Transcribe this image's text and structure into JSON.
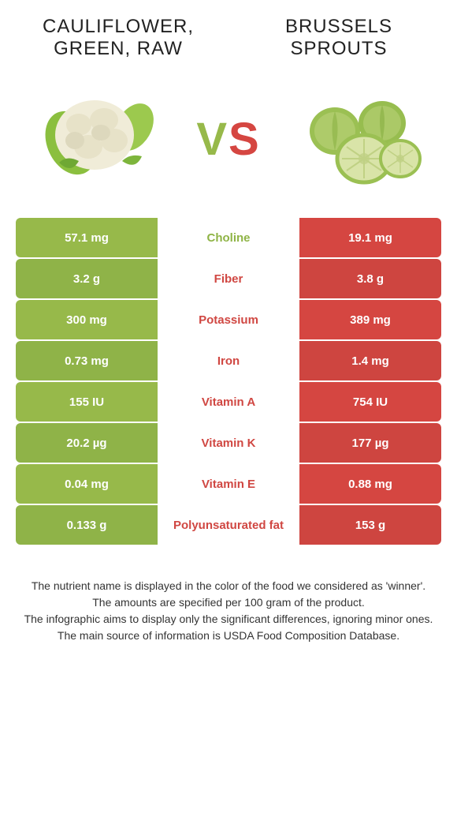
{
  "colors": {
    "left_a": "#97b94a",
    "left_b": "#8fb348",
    "right_a": "#d54641",
    "right_b": "#ce4540",
    "winner_left": "#8fb446",
    "winner_right": "#d04742",
    "vs_v": "#97b94a",
    "vs_s": "#d54641"
  },
  "titles": {
    "left": "Cauliflower, green, raw",
    "right": "Brussels sprouts"
  },
  "vs": {
    "v": "V",
    "s": "S"
  },
  "rows": [
    {
      "left": "57.1 mg",
      "name": "Choline",
      "right": "19.1 mg",
      "winner": "left"
    },
    {
      "left": "3.2 g",
      "name": "Fiber",
      "right": "3.8 g",
      "winner": "right"
    },
    {
      "left": "300 mg",
      "name": "Potassium",
      "right": "389 mg",
      "winner": "right"
    },
    {
      "left": "0.73 mg",
      "name": "Iron",
      "right": "1.4 mg",
      "winner": "right"
    },
    {
      "left": "155 IU",
      "name": "Vitamin A",
      "right": "754 IU",
      "winner": "right"
    },
    {
      "left": "20.2 µg",
      "name": "Vitamin K",
      "right": "177 µg",
      "winner": "right"
    },
    {
      "left": "0.04 mg",
      "name": "Vitamin E",
      "right": "0.88 mg",
      "winner": "right"
    },
    {
      "left": "0.133 g",
      "name": "Polyunsaturated fat",
      "right": "153 g",
      "winner": "right"
    }
  ],
  "footer": [
    "The nutrient name is displayed in the color of the food we considered as 'winner'.",
    "The amounts are specified per 100 gram of the product.",
    "The infographic aims to display only the significant differences, ignoring minor ones.",
    "The main source of information is USDA Food Composition Database."
  ]
}
